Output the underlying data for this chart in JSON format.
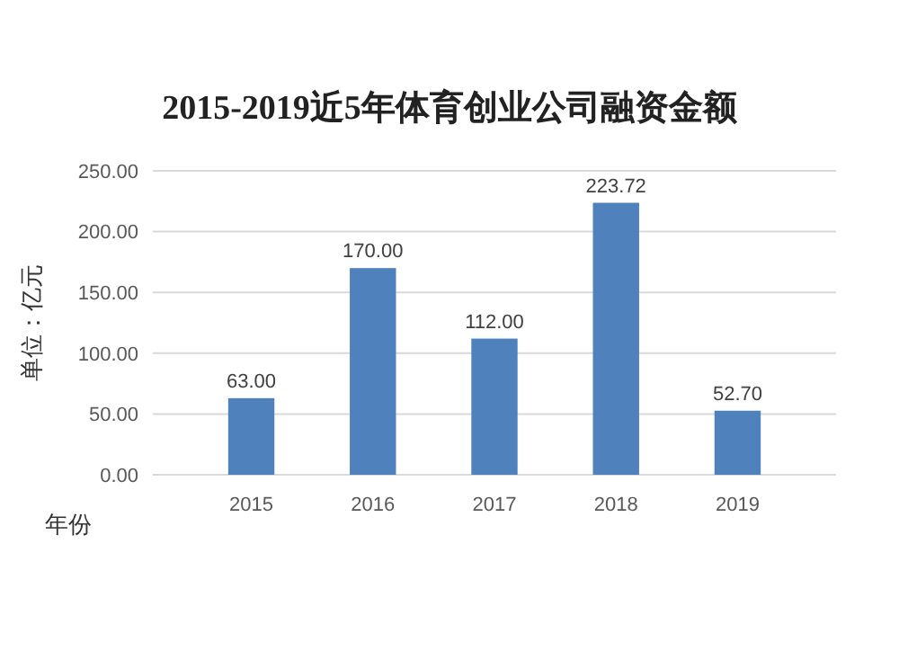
{
  "chart_data": {
    "type": "bar",
    "title": "2015-2019近5年体育创业公司融资金额",
    "xlabel": "年份",
    "ylabel": "单位：亿元",
    "categories": [
      "2015",
      "2016",
      "2017",
      "2018",
      "2019"
    ],
    "values": [
      63.0,
      170.0,
      112.0,
      223.72,
      52.7
    ],
    "value_labels": [
      "63.00",
      "170.00",
      "112.00",
      "223.72",
      "52.70"
    ],
    "color": "#4f81bd",
    "ylim": [
      0,
      250
    ],
    "yticks": [
      {
        "value": 0,
        "label": "0.00"
      },
      {
        "value": 50,
        "label": "50.00"
      },
      {
        "value": 100,
        "label": "100.00"
      },
      {
        "value": 150,
        "label": "150.00"
      },
      {
        "value": 200,
        "label": "200.00"
      },
      {
        "value": 250,
        "label": "250.00"
      }
    ],
    "grid": "y"
  }
}
